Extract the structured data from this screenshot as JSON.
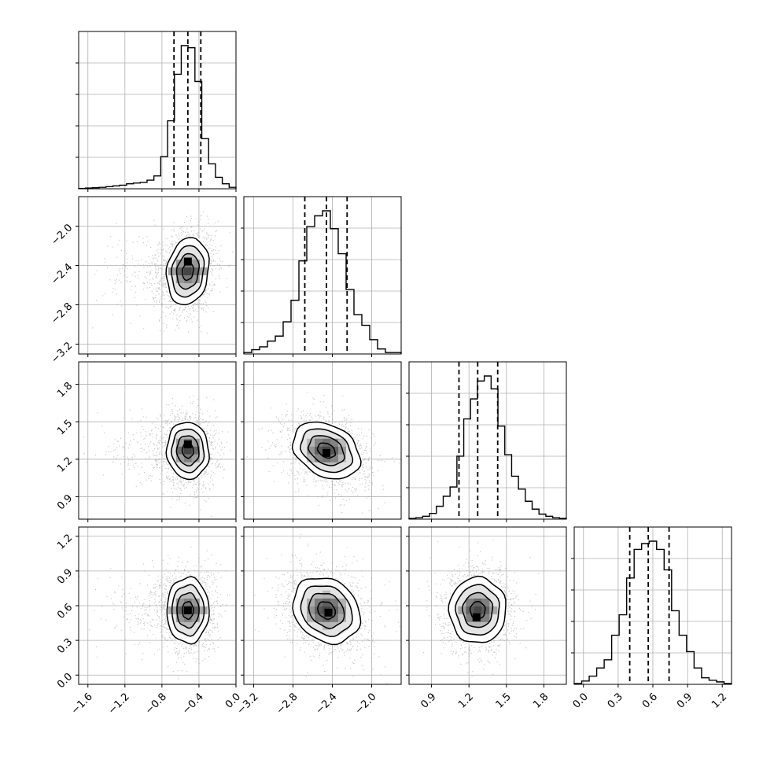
{
  "figure": {
    "type": "corner-plot",
    "colors": {
      "line": "#000000",
      "grid": "#b0b0b0",
      "points": "#9a9a9a",
      "background": "#ffffff"
    }
  },
  "chart_data": {
    "type": "corner",
    "grid": true,
    "params": [
      {
        "range": [
          -1.7,
          0.0
        ],
        "ticks": [
          -1.6,
          -1.2,
          -0.8,
          -0.4,
          0.0
        ],
        "tick_labels": [
          "−1.6",
          "−1.2",
          "−0.8",
          "−0.4",
          "0.0"
        ],
        "quantiles": [
          -0.67,
          -0.52,
          -0.38
        ],
        "histogram": [
          0.5,
          1,
          1.5,
          2,
          3,
          4,
          5,
          7,
          8,
          9,
          12,
          18,
          45,
          95,
          160,
          200,
          197,
          150,
          70,
          35,
          16,
          7,
          2
        ]
      },
      {
        "range": [
          -3.3,
          -1.7
        ],
        "ticks": [
          -3.2,
          -2.8,
          -2.4,
          -2.0
        ],
        "tick_labels": [
          "−3.2",
          "−2.8",
          "−2.4",
          "−2.0"
        ],
        "quantiles": [
          -2.68,
          -2.46,
          -2.25
        ],
        "histogram": [
          2,
          6,
          10,
          18,
          25,
          45,
          75,
          130,
          178,
          193,
          200,
          175,
          140,
          90,
          55,
          40,
          20,
          7,
          2,
          2
        ]
      },
      {
        "range": [
          0.72,
          1.98
        ],
        "ticks": [
          0.9,
          1.2,
          1.5,
          1.8
        ],
        "tick_labels": [
          "0.9",
          "1.2",
          "1.5",
          "1.8"
        ],
        "quantiles": [
          1.12,
          1.27,
          1.43
        ],
        "histogram": [
          1,
          2,
          4,
          8,
          18,
          32,
          45,
          88,
          140,
          168,
          193,
          200,
          182,
          130,
          90,
          60,
          42,
          25,
          14,
          7,
          4,
          2,
          1
        ]
      },
      {
        "range": [
          -0.08,
          1.28
        ],
        "ticks": [
          0.0,
          0.3,
          0.6,
          0.9,
          1.2
        ],
        "tick_labels": [
          "0.0",
          "0.3",
          "0.6",
          "0.9",
          "1.2"
        ],
        "quantiles": [
          0.4,
          0.56,
          0.74
        ],
        "histogram": [
          1,
          4,
          10,
          20,
          30,
          60,
          85,
          130,
          165,
          172,
          175,
          165,
          140,
          90,
          60,
          40,
          20,
          8,
          5,
          3,
          1
        ]
      }
    ],
    "pairs": [
      {
        "x": 0,
        "y": 1,
        "center": [
          -0.52,
          -2.46
        ],
        "sigma": [
          0.12,
          0.18
        ],
        "rho": 0.15,
        "peak": [
          -0.52,
          -2.36
        ]
      },
      {
        "x": 0,
        "y": 2,
        "center": [
          -0.52,
          1.27
        ],
        "sigma": [
          0.12,
          0.12
        ],
        "rho": -0.05,
        "peak": [
          -0.52,
          1.32
        ]
      },
      {
        "x": 1,
        "y": 2,
        "center": [
          -2.46,
          1.27
        ],
        "sigma": [
          0.18,
          0.12
        ],
        "rho": -0.3,
        "peak": [
          -2.46,
          1.25
        ]
      },
      {
        "x": 0,
        "y": 3,
        "center": [
          -0.52,
          0.56
        ],
        "sigma": [
          0.12,
          0.15
        ],
        "rho": 0.0,
        "peak": [
          -0.52,
          0.56
        ]
      },
      {
        "x": 1,
        "y": 3,
        "center": [
          -2.46,
          0.56
        ],
        "sigma": [
          0.18,
          0.15
        ],
        "rho": -0.2,
        "peak": [
          -2.44,
          0.54
        ]
      },
      {
        "x": 2,
        "y": 3,
        "center": [
          1.27,
          0.56
        ],
        "sigma": [
          0.12,
          0.15
        ],
        "rho": 0.0,
        "peak": [
          1.26,
          0.5
        ]
      }
    ]
  }
}
